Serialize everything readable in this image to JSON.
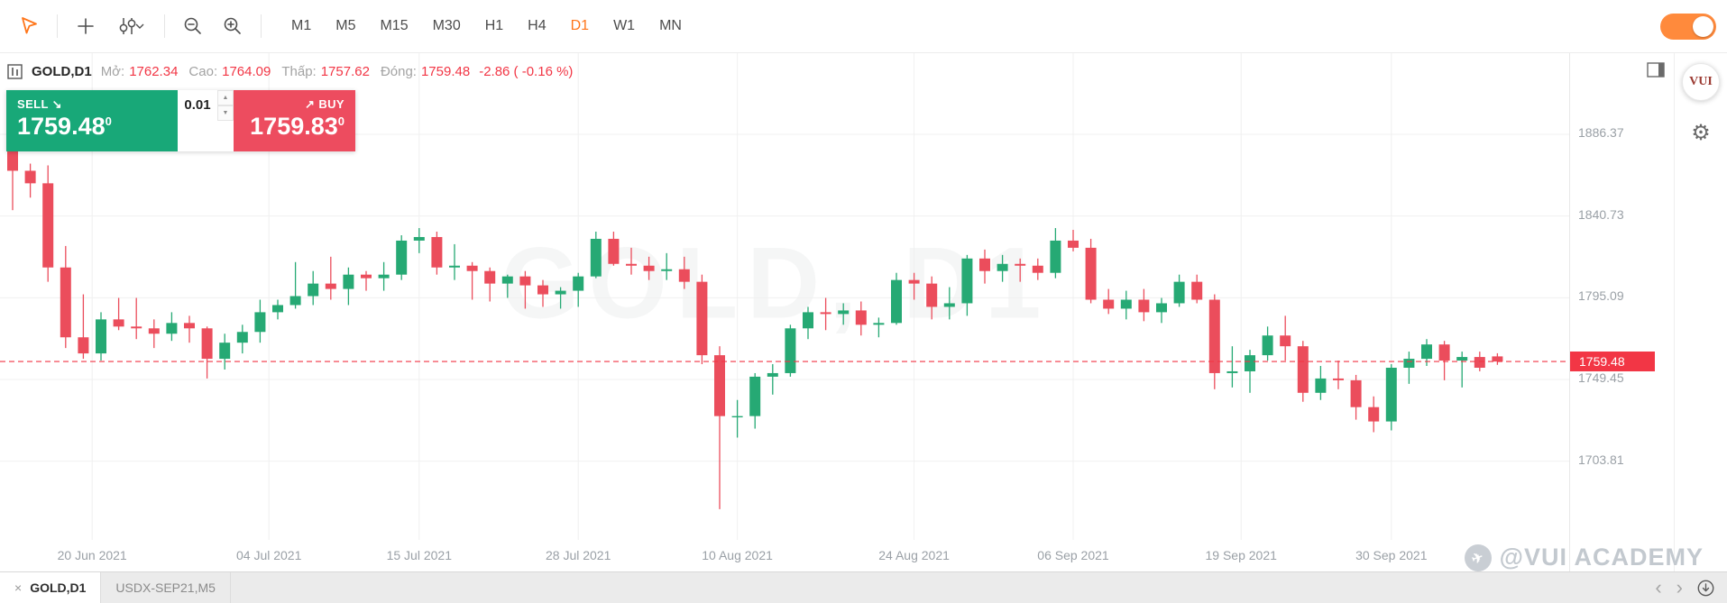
{
  "icons": {
    "sell_arrow": "↘",
    "buy_arrow": "↗",
    "spin_up": "▲",
    "spin_down": "▼",
    "gear": "⚙",
    "close": "×",
    "chev_left": "‹",
    "chev_right": "›",
    "plane": "✈",
    "caret_down": "⌄"
  },
  "toolbar": {
    "timeframes": [
      "M1",
      "M5",
      "M15",
      "M30",
      "H1",
      "H4",
      "D1",
      "W1",
      "MN"
    ],
    "active_timeframe": "D1",
    "toggle_on": true
  },
  "header": {
    "symbol": "GOLD,D1",
    "fields": [
      {
        "label": "Mở:",
        "value": "1762.34"
      },
      {
        "label": "Cao:",
        "value": "1764.09"
      },
      {
        "label": "Thấp:",
        "value": "1757.62"
      },
      {
        "label": "Đóng:",
        "value": "1759.48"
      }
    ],
    "change": "-2.86 ( -0.16 %)"
  },
  "trade": {
    "sell_label": "SELL",
    "sell_price": "1759.48",
    "sell_sup": "0",
    "volume": "0.01",
    "buy_label": "BUY",
    "buy_price": "1759.83",
    "buy_sup": "0"
  },
  "rail": {
    "logo": "VUI"
  },
  "credit": {
    "text": "@VUI ACADEMY"
  },
  "bottom": {
    "tabs": [
      {
        "label": "GOLD,D1",
        "active": true
      },
      {
        "label": "USDX-SEP21,M5",
        "active": false
      }
    ]
  },
  "chart": {
    "watermark": "GOLD, D1",
    "current_price": 1759.48,
    "current_price_label": "1759.48",
    "colors": {
      "up": "#26a974",
      "down": "#eb4d5c",
      "grid": "#f0f0f0",
      "price_line": "#f23645",
      "accent": "#ff7519"
    },
    "y_axis": [
      1886.37,
      1840.73,
      1795.09,
      1749.45,
      1703.81
    ],
    "x_axis": [
      {
        "label": "20 Jun 2021",
        "i": 4.5
      },
      {
        "label": "04 Jul 2021",
        "i": 14.5
      },
      {
        "label": "15 Jul 2021",
        "i": 23
      },
      {
        "label": "28 Jul 2021",
        "i": 32
      },
      {
        "label": "10 Aug 2021",
        "i": 41
      },
      {
        "label": "24 Aug 2021",
        "i": 51
      },
      {
        "label": "06 Sep 2021",
        "i": 60
      },
      {
        "label": "19 Sep 2021",
        "i": 69.5
      },
      {
        "label": "30 Sep 2021",
        "i": 78
      }
    ],
    "candles": [
      [
        1877,
        1878.5,
        1844,
        1866
      ],
      [
        1866,
        1870,
        1851,
        1859
      ],
      [
        1859,
        1869,
        1804,
        1812
      ],
      [
        1812,
        1824,
        1767,
        1773
      ],
      [
        1773,
        1797,
        1761,
        1764
      ],
      [
        1764,
        1787,
        1760,
        1783
      ],
      [
        1783,
        1795,
        1777,
        1779
      ],
      [
        1779,
        1795,
        1772,
        1778
      ],
      [
        1778,
        1783,
        1767,
        1775
      ],
      [
        1775,
        1787,
        1771,
        1781
      ],
      [
        1781,
        1785,
        1770,
        1778
      ],
      [
        1778,
        1779,
        1750,
        1761
      ],
      [
        1761,
        1775,
        1755,
        1770
      ],
      [
        1770,
        1780,
        1764,
        1776
      ],
      [
        1776,
        1794,
        1770,
        1787
      ],
      [
        1787,
        1794,
        1783,
        1791
      ],
      [
        1791,
        1815,
        1789,
        1796
      ],
      [
        1796,
        1810,
        1791,
        1803
      ],
      [
        1803,
        1818,
        1794,
        1800
      ],
      [
        1800,
        1812,
        1791,
        1808
      ],
      [
        1808,
        1810,
        1799,
        1806
      ],
      [
        1806,
        1815,
        1799,
        1808
      ],
      [
        1808,
        1830,
        1805,
        1827
      ],
      [
        1827,
        1834,
        1820,
        1829
      ],
      [
        1829,
        1832,
        1808,
        1812
      ],
      [
        1812,
        1825,
        1805,
        1813
      ],
      [
        1813,
        1815,
        1794,
        1810
      ],
      [
        1810,
        1812,
        1793,
        1803
      ],
      [
        1803,
        1808,
        1795,
        1807
      ],
      [
        1807,
        1810,
        1789,
        1802
      ],
      [
        1802,
        1805,
        1790,
        1797
      ],
      [
        1797,
        1801,
        1789,
        1799
      ],
      [
        1799,
        1809,
        1790,
        1807
      ],
      [
        1807,
        1832,
        1806,
        1828
      ],
      [
        1828,
        1832,
        1813,
        1814
      ],
      [
        1814,
        1823,
        1808,
        1813
      ],
      [
        1813,
        1818,
        1805,
        1810
      ],
      [
        1810,
        1820,
        1805,
        1811
      ],
      [
        1811,
        1818,
        1800,
        1804
      ],
      [
        1804,
        1808,
        1758,
        1763
      ],
      [
        1763,
        1768,
        1677,
        1729
      ],
      [
        1729,
        1738,
        1717,
        1729
      ],
      [
        1729,
        1753,
        1722,
        1751
      ],
      [
        1751,
        1758,
        1741,
        1753
      ],
      [
        1753,
        1780,
        1751,
        1778
      ],
      [
        1778,
        1790,
        1772,
        1787
      ],
      [
        1787,
        1795,
        1777,
        1786
      ],
      [
        1786,
        1792,
        1780,
        1788
      ],
      [
        1788,
        1793,
        1774,
        1780
      ],
      [
        1780,
        1784,
        1773,
        1781
      ],
      [
        1781,
        1809,
        1780,
        1805
      ],
      [
        1805,
        1809,
        1794,
        1803
      ],
      [
        1803,
        1807,
        1783,
        1790
      ],
      [
        1790,
        1801,
        1783,
        1792
      ],
      [
        1792,
        1819,
        1785,
        1817
      ],
      [
        1817,
        1822,
        1803,
        1810
      ],
      [
        1810,
        1819,
        1804,
        1814
      ],
      [
        1814,
        1817,
        1804,
        1813
      ],
      [
        1813,
        1817,
        1805,
        1809
      ],
      [
        1809,
        1834,
        1806,
        1827
      ],
      [
        1827,
        1833,
        1821,
        1823
      ],
      [
        1823,
        1828,
        1792,
        1794
      ],
      [
        1794,
        1800,
        1786,
        1789
      ],
      [
        1789,
        1799,
        1783,
        1794
      ],
      [
        1794,
        1800,
        1782,
        1787
      ],
      [
        1787,
        1795,
        1781,
        1792
      ],
      [
        1792,
        1808,
        1790,
        1804
      ],
      [
        1804,
        1808,
        1792,
        1794
      ],
      [
        1794,
        1797,
        1744,
        1753
      ],
      [
        1753,
        1768,
        1745,
        1754
      ],
      [
        1754,
        1766,
        1742,
        1763
      ],
      [
        1763,
        1779,
        1760,
        1774
      ],
      [
        1774,
        1785,
        1760,
        1768
      ],
      [
        1768,
        1771,
        1737,
        1742
      ],
      [
        1742,
        1757,
        1738,
        1750
      ],
      [
        1750,
        1760,
        1744,
        1749
      ],
      [
        1749,
        1752,
        1727,
        1734
      ],
      [
        1734,
        1740,
        1720,
        1726
      ],
      [
        1726,
        1758,
        1721,
        1756
      ],
      [
        1756,
        1765,
        1747,
        1761
      ],
      [
        1761,
        1772,
        1757,
        1769
      ],
      [
        1769,
        1771,
        1749,
        1760
      ],
      [
        1760,
        1765,
        1745,
        1762
      ],
      [
        1762,
        1765,
        1754,
        1756
      ],
      [
        1762.34,
        1764.09,
        1757.62,
        1759.48
      ]
    ]
  }
}
